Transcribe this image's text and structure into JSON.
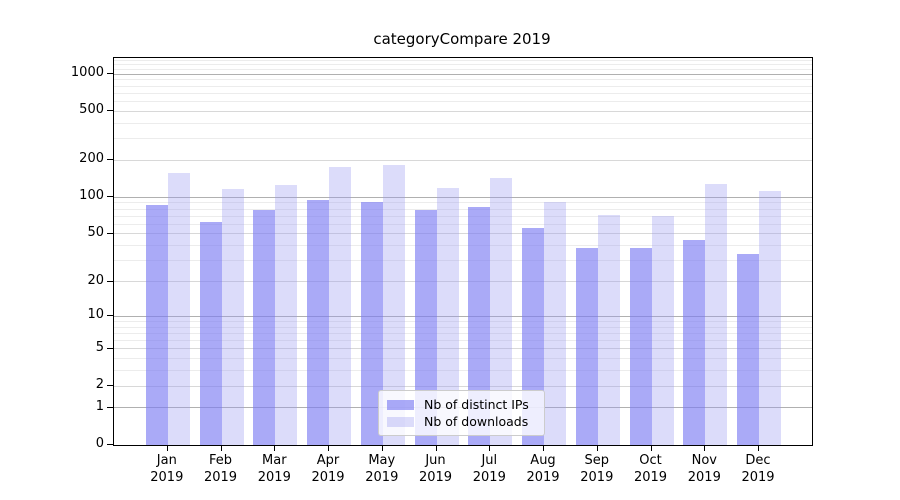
{
  "title": "categoryCompare 2019",
  "chart_data": {
    "type": "bar",
    "title": "categoryCompare 2019",
    "categories": [
      "Jan",
      "Feb",
      "Mar",
      "Apr",
      "May",
      "Jun",
      "Jul",
      "Aug",
      "Sep",
      "Oct",
      "Nov",
      "Dec"
    ],
    "x_tick_year": "2019",
    "series": [
      {
        "name": "Nb of distinct IPs",
        "color": "rgba(125,125,242,0.65)",
        "values": [
          87,
          63,
          78,
          95,
          92,
          78,
          83,
          56,
          38,
          38,
          45,
          34
        ]
      },
      {
        "name": "Nb of downloads",
        "color": "rgba(155,155,241,0.35)",
        "values": [
          158,
          116,
          127,
          177,
          184,
          120,
          144,
          92,
          71,
          70,
          128,
          112
        ]
      }
    ],
    "yscale": "log1p",
    "ylim": [
      0,
      1350
    ],
    "y_tick_labels": [
      "0",
      "1",
      "2",
      "5",
      "10",
      "20",
      "50",
      "100",
      "200",
      "500",
      "1000"
    ],
    "y_gridlines": {
      "major": [
        1,
        10,
        100,
        1000
      ],
      "mid": [
        2,
        5,
        20,
        50,
        200,
        500
      ],
      "minor": [
        3,
        4,
        6,
        7,
        8,
        9,
        30,
        40,
        60,
        70,
        80,
        90,
        300,
        400,
        600,
        700,
        800,
        900,
        1100,
        1200,
        1300
      ]
    },
    "legend_position": "lower center",
    "grid": true
  }
}
